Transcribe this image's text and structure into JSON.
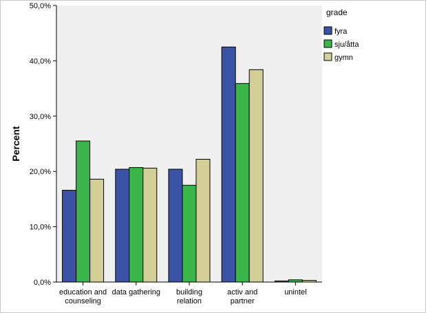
{
  "chart_data": {
    "type": "bar",
    "ylabel": "Percent",
    "xlabel": "",
    "ylim": [
      0,
      50
    ],
    "y_ticks": [
      {
        "value": 0,
        "label": "0,0%"
      },
      {
        "value": 10,
        "label": "10,0%"
      },
      {
        "value": 20,
        "label": "20,0%"
      },
      {
        "value": 30,
        "label": "30,0%"
      },
      {
        "value": 40,
        "label": "40,0%"
      },
      {
        "value": 50,
        "label": "50,0%"
      }
    ],
    "categories": [
      [
        "education and",
        "counseling"
      ],
      [
        "data gathering"
      ],
      [
        "building",
        "relation"
      ],
      [
        "activ and",
        "partner"
      ],
      [
        "unintel"
      ]
    ],
    "legend": {
      "title": "grade",
      "placement": "right"
    },
    "series": [
      {
        "name": "fyra",
        "color": "#3a53a4",
        "values": [
          16.6,
          20.4,
          20.4,
          42.5,
          0.2
        ]
      },
      {
        "name": "sju/åtta",
        "color": "#3ab54a",
        "values": [
          25.5,
          20.7,
          17.5,
          35.9,
          0.4
        ]
      },
      {
        "name": "gymn",
        "color": "#d3cf97",
        "values": [
          18.6,
          20.6,
          22.2,
          38.4,
          0.3
        ]
      }
    ]
  }
}
